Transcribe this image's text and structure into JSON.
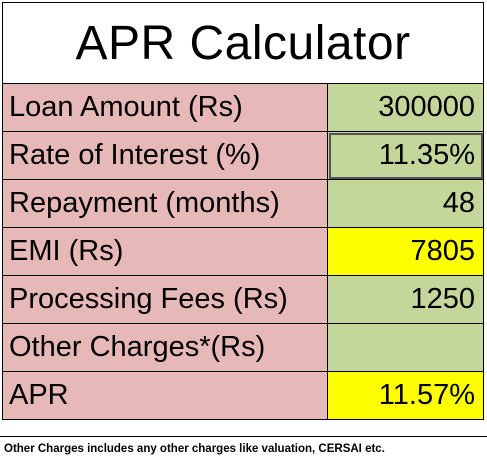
{
  "title": "APR Calculator",
  "rows": [
    {
      "label": "Loan Amount (Rs)",
      "value": "300000",
      "highlight": "green"
    },
    {
      "label": "Rate of Interest (%)",
      "value": "11.35%",
      "highlight": "green"
    },
    {
      "label": "Repayment (months)",
      "value": "48",
      "highlight": "green"
    },
    {
      "label": "EMI (Rs)",
      "value": "7805",
      "highlight": "yellow"
    },
    {
      "label": "Processing Fees (Rs)",
      "value": "1250",
      "highlight": "green"
    },
    {
      "label": "Other Charges*(Rs)",
      "value": "",
      "highlight": "green"
    },
    {
      "label": "APR",
      "value": "11.57%",
      "highlight": "yellow"
    }
  ],
  "footnote": "Other Charges includes any other charges like valuation, CERSAI etc.",
  "colors": {
    "label_bg": "#e6b9b8",
    "input_bg": "#c4d79b",
    "result_bg": "#ffff00"
  }
}
